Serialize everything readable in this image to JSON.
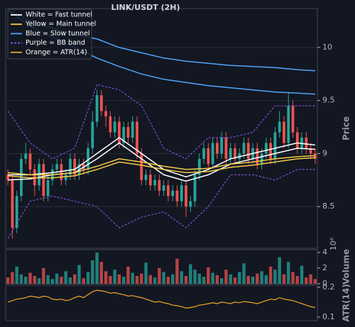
{
  "chart_data": [
    {
      "type": "candlestick",
      "title": "LINK/USDT (2H)",
      "ylabel": "Price",
      "xlim": [
        -0.5,
        69.5
      ],
      "ylim": [
        8.107,
        10.367
      ],
      "yticks": [
        8.5,
        9.0,
        9.5,
        10.0
      ],
      "grid": true,
      "legend_loc": "upper left",
      "up_color": "#26a69a",
      "down_color": "#ef5350",
      "open": [
        8.8,
        8.75,
        8.3,
        8.6,
        8.95,
        9.0,
        8.85,
        8.7,
        8.9,
        8.6,
        8.75,
        8.85,
        8.9,
        8.75,
        8.8,
        8.95,
        8.8,
        8.9,
        8.85,
        9.05,
        9.3,
        9.55,
        9.4,
        9.35,
        9.2,
        9.3,
        9.1,
        9.25,
        9.15,
        9.3,
        9.0,
        8.75,
        8.8,
        8.7,
        8.75,
        8.65,
        8.7,
        8.6,
        8.65,
        8.55,
        8.7,
        8.5,
        8.55,
        8.8,
        8.95,
        9.05,
        8.9,
        9.1,
        9.0,
        9.15,
        8.95,
        9.05,
        8.95,
        9.0,
        9.1,
        8.95,
        9.05,
        8.9,
        9.0,
        9.1,
        8.95,
        9.2,
        9.3,
        9.1,
        9.45,
        9.2,
        9.05,
        9.15,
        9.05,
        9.0
      ],
      "high": [
        8.85,
        8.8,
        8.65,
        9.0,
        9.1,
        9.05,
        8.9,
        8.95,
        8.95,
        8.8,
        8.9,
        8.95,
        8.95,
        8.85,
        9.0,
        9.0,
        8.95,
        8.95,
        9.1,
        9.4,
        9.6,
        9.6,
        9.45,
        9.4,
        9.35,
        9.35,
        9.3,
        9.3,
        9.35,
        9.35,
        9.05,
        8.85,
        8.85,
        8.8,
        8.8,
        8.75,
        8.75,
        8.7,
        8.7,
        8.75,
        8.75,
        8.6,
        8.85,
        9.0,
        9.1,
        9.1,
        9.15,
        9.15,
        9.2,
        9.2,
        9.1,
        9.1,
        9.05,
        9.15,
        9.15,
        9.1,
        9.1,
        9.05,
        9.15,
        9.15,
        9.25,
        9.4,
        9.35,
        9.58,
        9.5,
        9.25,
        9.2,
        9.2,
        9.1,
        9.05
      ],
      "low": [
        8.7,
        8.2,
        8.25,
        8.55,
        8.9,
        8.8,
        8.6,
        8.65,
        8.55,
        8.55,
        8.7,
        8.8,
        8.7,
        8.7,
        8.75,
        8.75,
        8.75,
        8.8,
        8.8,
        9.0,
        9.25,
        9.35,
        9.25,
        9.15,
        9.15,
        9.05,
        9.05,
        9.1,
        9.1,
        8.95,
        8.7,
        8.7,
        8.65,
        8.65,
        8.6,
        8.6,
        8.55,
        8.55,
        8.5,
        8.5,
        8.4,
        8.45,
        8.5,
        8.75,
        8.9,
        8.85,
        8.85,
        8.95,
        8.95,
        8.9,
        8.9,
        8.9,
        8.9,
        8.95,
        8.9,
        8.9,
        8.85,
        8.85,
        8.95,
        8.9,
        8.9,
        9.15,
        9.05,
        9.05,
        9.15,
        9.0,
        9.0,
        9.0,
        8.95,
        8.9
      ],
      "close": [
        8.75,
        8.3,
        8.6,
        8.95,
        9.0,
        8.85,
        8.7,
        8.9,
        8.6,
        8.75,
        8.85,
        8.9,
        8.75,
        8.8,
        8.95,
        8.8,
        8.9,
        8.85,
        9.05,
        9.3,
        9.55,
        9.4,
        9.35,
        9.2,
        9.3,
        9.1,
        9.25,
        9.15,
        9.3,
        9.0,
        8.75,
        8.8,
        8.7,
        8.75,
        8.65,
        8.7,
        8.6,
        8.65,
        8.55,
        8.7,
        8.5,
        8.55,
        8.8,
        8.95,
        9.05,
        8.9,
        9.1,
        9.0,
        9.15,
        8.95,
        9.05,
        8.95,
        9.0,
        9.1,
        8.95,
        9.05,
        8.9,
        9.0,
        9.1,
        8.95,
        9.2,
        9.3,
        9.1,
        9.45,
        9.2,
        9.05,
        9.15,
        9.05,
        9.0,
        8.95
      ],
      "overlays": [
        {
          "name": "White = Fast tunnel",
          "color": "#ffffff",
          "dashed": false,
          "x": [
            0,
            5,
            10,
            15,
            20,
            25,
            30,
            35,
            40,
            45,
            50,
            55,
            60,
            65,
            69
          ],
          "lines": [
            [
              8.8,
              8.8,
              8.82,
              8.85,
              9.0,
              9.15,
              9.0,
              8.85,
              8.78,
              8.85,
              8.95,
              9.0,
              9.05,
              9.1,
              9.08
            ],
            [
              8.75,
              8.76,
              8.8,
              8.82,
              8.95,
              9.1,
              8.95,
              8.8,
              8.74,
              8.8,
              8.9,
              8.95,
              9.0,
              9.05,
              9.04
            ]
          ]
        },
        {
          "name": "Yellow = Main tunnel",
          "color": "#f7c948",
          "dashed": false,
          "x": [
            0,
            5,
            10,
            15,
            20,
            25,
            30,
            35,
            40,
            45,
            50,
            55,
            60,
            65,
            69
          ],
          "lines": [
            [
              8.82,
              8.8,
              8.8,
              8.82,
              8.88,
              8.95,
              8.92,
              8.88,
              8.85,
              8.86,
              8.9,
              8.92,
              8.95,
              8.97,
              8.98
            ],
            [
              8.79,
              8.77,
              8.77,
              8.79,
              8.85,
              8.92,
              8.89,
              8.85,
              8.82,
              8.83,
              8.87,
              8.89,
              8.92,
              8.95,
              8.96
            ]
          ]
        },
        {
          "name": "Blue = Slow tunnel",
          "color": "#4da6ff",
          "dashed": false,
          "x": [
            0,
            5,
            10,
            15,
            20,
            25,
            30,
            35,
            40,
            45,
            50,
            55,
            60,
            65,
            69
          ],
          "lines": [
            [
              10.35,
              10.25,
              10.18,
              10.12,
              10.08,
              10.0,
              9.95,
              9.9,
              9.87,
              9.85,
              9.83,
              9.82,
              9.81,
              9.79,
              9.78
            ],
            [
              10.35,
              10.2,
              10.1,
              10.0,
              9.9,
              9.82,
              9.75,
              9.7,
              9.67,
              9.64,
              9.62,
              9.6,
              9.58,
              9.57,
              9.56
            ]
          ]
        },
        {
          "name": "Purple = BB band",
          "color": "#8a5cf5",
          "dashed": true,
          "x": [
            0,
            5,
            10,
            15,
            20,
            25,
            30,
            35,
            40,
            45,
            50,
            55,
            60,
            65,
            69
          ],
          "lines": [
            [
              9.4,
              9.1,
              8.95,
              9.05,
              9.65,
              9.6,
              9.45,
              9.05,
              8.95,
              9.15,
              9.15,
              9.2,
              9.45,
              9.45,
              9.45
            ],
            [
              8.2,
              8.55,
              8.6,
              8.55,
              8.5,
              8.3,
              8.4,
              8.45,
              8.3,
              8.5,
              8.8,
              8.8,
              8.75,
              8.85,
              8.85
            ]
          ]
        }
      ]
    },
    {
      "type": "bar",
      "ylabel": "Volume",
      "offset_text": "10⁶",
      "ylim": [
        0,
        4.36
      ],
      "yticks": [
        0,
        2,
        4
      ],
      "values": [
        0.8,
        1.5,
        2.2,
        1.2,
        0.9,
        1.4,
        1.0,
        0.7,
        2.0,
        1.1,
        0.6,
        1.3,
        0.9,
        1.6,
        0.8,
        1.2,
        2.4,
        0.7,
        1.5,
        3.0,
        4.0,
        2.8,
        1.6,
        1.0,
        1.8,
        1.2,
        0.9,
        2.2,
        1.4,
        1.0,
        1.3,
        2.7,
        1.1,
        0.8,
        2.0,
        1.5,
        0.9,
        1.2,
        3.2,
        1.6,
        1.0,
        2.5,
        1.8,
        1.3,
        0.9,
        2.1,
        1.4,
        1.1,
        0.7,
        1.8,
        1.2,
        0.8,
        1.5,
        2.6,
        1.0,
        0.9,
        1.3,
        1.6,
        1.1,
        2.2,
        1.8,
        3.4,
        1.2,
        2.8,
        1.5,
        1.0,
        2.3,
        0.8,
        1.2,
        0.6
      ]
    },
    {
      "type": "line",
      "name": "Orange = ATR(14)",
      "ylabel": "ATR(14)",
      "color": "#f5a623",
      "ylim": [
        0.088,
        0.207
      ],
      "yticks": [
        0.1,
        0.2
      ],
      "values": [
        0.15,
        0.155,
        0.16,
        0.162,
        0.165,
        0.17,
        0.168,
        0.165,
        0.17,
        0.168,
        0.16,
        0.158,
        0.16,
        0.155,
        0.158,
        0.165,
        0.17,
        0.165,
        0.175,
        0.185,
        0.19,
        0.188,
        0.185,
        0.18,
        0.182,
        0.178,
        0.175,
        0.17,
        0.172,
        0.168,
        0.165,
        0.16,
        0.155,
        0.15,
        0.152,
        0.148,
        0.145,
        0.14,
        0.138,
        0.135,
        0.13,
        0.132,
        0.135,
        0.14,
        0.142,
        0.145,
        0.148,
        0.145,
        0.15,
        0.148,
        0.145,
        0.15,
        0.148,
        0.152,
        0.15,
        0.148,
        0.145,
        0.15,
        0.155,
        0.16,
        0.158,
        0.165,
        0.16,
        0.158,
        0.155,
        0.15,
        0.145,
        0.14,
        0.135,
        0.132
      ]
    }
  ]
}
